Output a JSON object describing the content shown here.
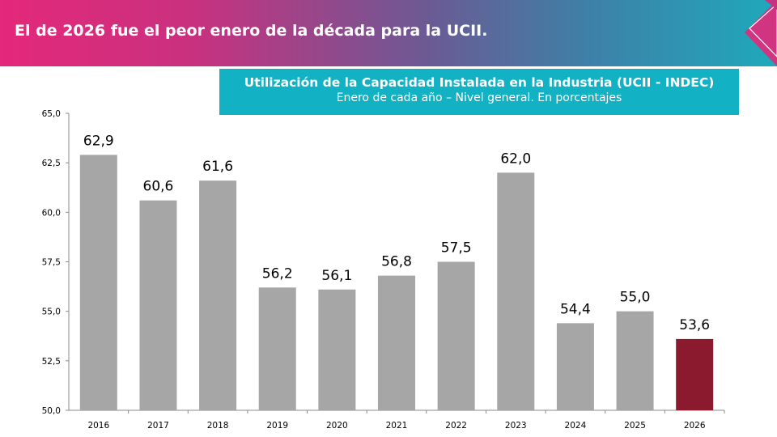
{
  "header": {
    "headline": "El de 2026 fue el peor enero de la década para la UCII.",
    "colors": {
      "left": "#e4287a",
      "right": "#1fa9bb"
    }
  },
  "chart_data": {
    "type": "bar",
    "title": "Utilización  de la Capacidad  Instalada  en la Industria  (UCII - INDEC)",
    "subtitle": "Enero de cada año – Nivel general. En porcentajes",
    "categories": [
      "2016",
      "2017",
      "2018",
      "2019",
      "2020",
      "2021",
      "2022",
      "2023",
      "2024",
      "2025",
      "2026"
    ],
    "values": [
      62.9,
      60.6,
      61.6,
      56.2,
      56.1,
      56.8,
      57.5,
      62.0,
      54.4,
      55.0,
      53.6
    ],
    "labels": [
      "62,9",
      "60,6",
      "61,6",
      "56,2",
      "56,1",
      "56,8",
      "57,5",
      "62,0",
      "54,4",
      "55,0",
      "53,6"
    ],
    "ylim": [
      50,
      65
    ],
    "yticks": [
      "50,0",
      "52,5",
      "55,0",
      "57,5",
      "60,0",
      "62,5",
      "65,0"
    ],
    "grid": false,
    "colors": {
      "bar": "#a6a6a6",
      "highlight": "#8b1a2e"
    },
    "highlight_index": 10
  }
}
